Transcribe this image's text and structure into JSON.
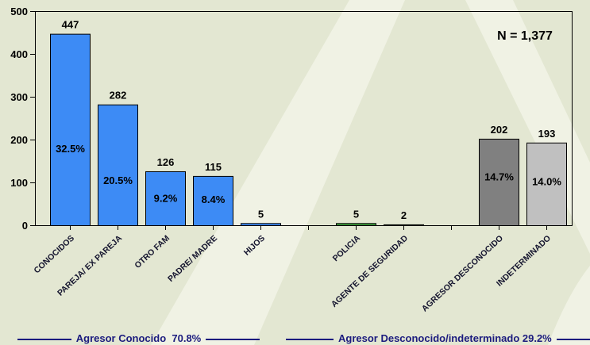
{
  "chart_data": {
    "type": "bar",
    "categories": [
      "CONOCIDOS",
      "PAREJA/ EX PAREJA",
      "OTRO FAM",
      "PADRE/ MADRE",
      "HIJOS",
      "",
      "POLICIA",
      "AGENTE DE SEGURIDAD",
      "",
      "AGRESOR DESCONOCIDO",
      "INDETERMINADO"
    ],
    "values": [
      447,
      282,
      126,
      115,
      5,
      null,
      5,
      2,
      null,
      202,
      193
    ],
    "percent_labels": [
      "32.5%",
      "20.5%",
      "9.2%",
      "8.4%",
      null,
      null,
      null,
      null,
      null,
      "14.7%",
      "14.0%"
    ],
    "bar_colors": [
      "#3d8bf5",
      "#3d8bf5",
      "#3d8bf5",
      "#3d8bf5",
      "#3d8bf5",
      null,
      "#3a9a3a",
      "#1f4f1f",
      null,
      "#808080",
      "#c0c0c0"
    ],
    "ylim": [
      0,
      500
    ],
    "yticks": [
      0,
      100,
      200,
      300,
      400,
      500
    ],
    "grid": false,
    "annotation": "N = 1,377",
    "groups": [
      {
        "label": "Agresor Conocido  70.8%"
      },
      {
        "label": "Agresor Desconocido/indeterminado 29.2%"
      }
    ]
  },
  "colors": {
    "background": "#e3e7d2",
    "watermark": "#f0f2e4",
    "group_label": "#1b1b7e",
    "axis": "#000000"
  }
}
